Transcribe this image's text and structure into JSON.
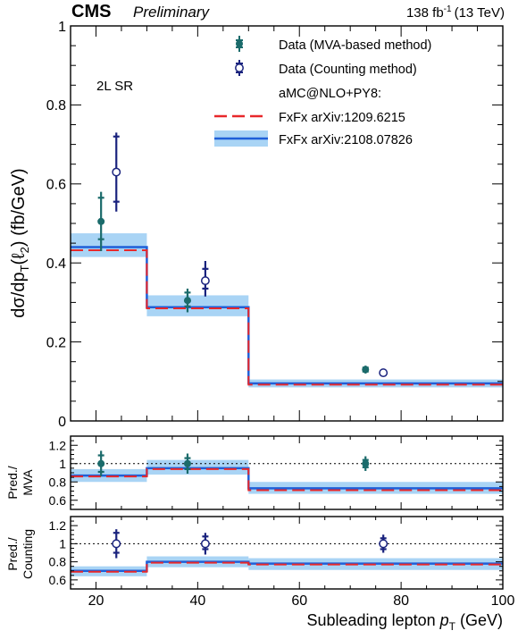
{
  "header": {
    "experiment": "CMS",
    "status": "Preliminary",
    "lumi": "138 fb",
    "lumi_sup": "-1",
    "energy": "(13 TeV)"
  },
  "region_label": "2L SR",
  "legend": {
    "entries": [
      {
        "label": "Data (MVA-based method)",
        "marker": "filled-circle"
      },
      {
        "label": "Data (Counting method)",
        "marker": "open-circle"
      },
      {
        "label": "aMC@NLO+PY8:",
        "marker": "none"
      },
      {
        "label": "FxFx arXiv:1209.6215",
        "marker": "red-dashed"
      },
      {
        "label": "FxFx arXiv:2108.07826",
        "marker": "blue-band"
      }
    ]
  },
  "colors": {
    "mva": "#1b6b6b",
    "counting": "#1a237e",
    "fxfx_old": "#e8282b",
    "fxfx_new_line": "#1f5fd8",
    "fxfx_new_band": "#a9d4f5"
  },
  "chart_data": [
    {
      "type": "line",
      "panel": "main",
      "xlabel": "Subleading lepton p_T (GeV)",
      "ylabel": "dσ/dp_T(ℓ_2) (fb/GeV)",
      "xlim": [
        15,
        100
      ],
      "ylim": [
        0,
        1
      ],
      "yticks": [
        "0",
        "0.2",
        "0.4",
        "0.6",
        "0.8",
        "1"
      ],
      "bin_edges": [
        15,
        30,
        50,
        100
      ],
      "series": [
        {
          "name": "FxFx arXiv:1209.6215",
          "values": [
            0.432,
            0.285,
            0.092
          ]
        },
        {
          "name": "FxFx arXiv:2108.07826",
          "values": [
            0.44,
            0.288,
            0.095
          ],
          "band_low": [
            0.415,
            0.265,
            0.085
          ],
          "band_high": [
            0.475,
            0.318,
            0.105
          ]
        },
        {
          "name": "Data (MVA-based method)",
          "x": [
            21,
            38,
            73
          ],
          "values": [
            0.505,
            0.305,
            0.13
          ],
          "err_low": [
            0.075,
            0.03,
            0.01
          ],
          "err_high": [
            0.075,
            0.03,
            0.01
          ],
          "stat_low": [
            0.045,
            0.015,
            0.005
          ],
          "stat_high": [
            0.06,
            0.02,
            0.005
          ]
        },
        {
          "name": "Data (Counting method)",
          "x": [
            24,
            41.5,
            76.5
          ],
          "values": [
            0.63,
            0.355,
            0.122
          ],
          "err_low": [
            0.1,
            0.04,
            0.008
          ],
          "err_high": [
            0.1,
            0.05,
            0.008
          ],
          "stat_low": [
            0.075,
            0.02,
            0.004
          ],
          "stat_high": [
            0.09,
            0.03,
            0.004
          ]
        }
      ]
    },
    {
      "type": "line",
      "panel": "ratio-mva",
      "ylabel": "Pred./ MVA",
      "xlim": [
        15,
        100
      ],
      "ylim": [
        0.5,
        1.3
      ],
      "yticks": [
        "0.6",
        "0.8",
        "1",
        "1.2"
      ],
      "bin_edges": [
        15,
        30,
        50,
        100
      ],
      "series": [
        {
          "name": "FxFx arXiv:1209.6215",
          "values": [
            0.86,
            0.94,
            0.71
          ]
        },
        {
          "name": "FxFx arXiv:2108.07826",
          "values": [
            0.87,
            0.95,
            0.73
          ],
          "band_low": [
            0.8,
            0.88,
            0.67
          ],
          "band_high": [
            0.94,
            1.04,
            0.8
          ]
        },
        {
          "name": "Data (MVA-based method)",
          "x": [
            21,
            38,
            73
          ],
          "values": [
            1.0,
            1.0,
            1.0
          ],
          "err_low": [
            0.14,
            0.11,
            0.08
          ],
          "err_high": [
            0.14,
            0.11,
            0.08
          ],
          "stat_low": [
            0.09,
            0.06,
            0.04
          ],
          "stat_high": [
            0.09,
            0.06,
            0.04
          ]
        }
      ]
    },
    {
      "type": "line",
      "panel": "ratio-counting",
      "ylabel": "Pred./ Counting",
      "xlim": [
        15,
        100
      ],
      "ylim": [
        0.5,
        1.3
      ],
      "yticks": [
        "0.6",
        "0.8",
        "1",
        "1.2"
      ],
      "xticks": [
        "20",
        "40",
        "60",
        "80",
        "100"
      ],
      "bin_edges": [
        15,
        30,
        50,
        100
      ],
      "series": [
        {
          "name": "FxFx arXiv:1209.6215",
          "values": [
            0.69,
            0.79,
            0.77
          ]
        },
        {
          "name": "FxFx arXiv:2108.07826",
          "values": [
            0.7,
            0.8,
            0.78
          ],
          "band_low": [
            0.64,
            0.74,
            0.71
          ],
          "band_high": [
            0.75,
            0.86,
            0.84
          ]
        },
        {
          "name": "Data (Counting method)",
          "x": [
            24,
            41.5,
            76.5
          ],
          "values": [
            1.0,
            1.0,
            1.0
          ],
          "err_low": [
            0.16,
            0.12,
            0.1
          ],
          "err_high": [
            0.16,
            0.12,
            0.1
          ],
          "stat_low": [
            0.1,
            0.06,
            0.06
          ],
          "stat_high": [
            0.12,
            0.08,
            0.06
          ]
        }
      ]
    }
  ]
}
